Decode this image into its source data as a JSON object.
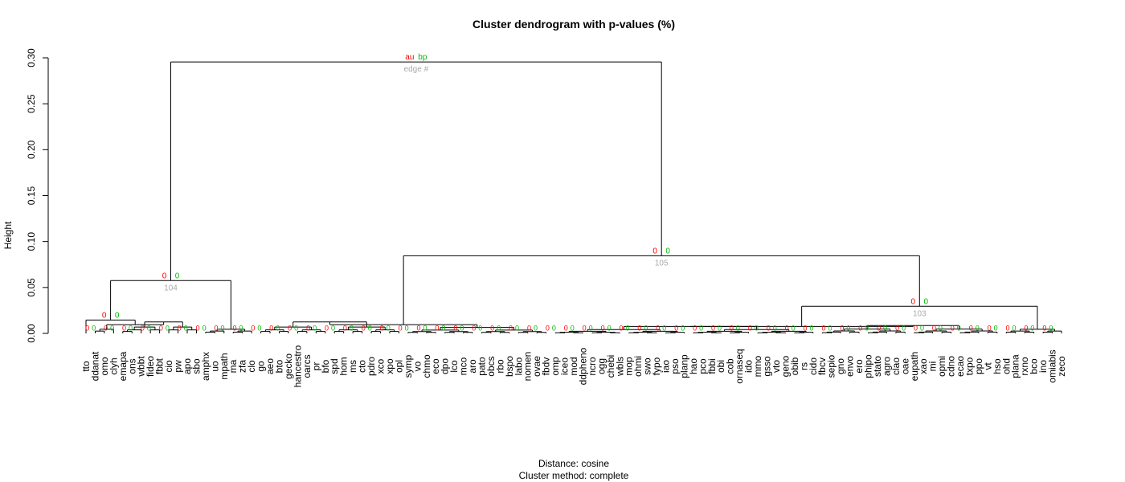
{
  "chart_data": {
    "type": "dendrogram",
    "title": "Cluster dendrogram with p-values (%)",
    "ylabel": "Height",
    "xlabel_line1": "Distance: cosine",
    "xlabel_line2": "Cluster method: complete",
    "ylim": [
      0,
      0.3
    ],
    "y_ticks": [
      "0.00",
      "0.05",
      "0.10",
      "0.15",
      "0.20",
      "0.25",
      "0.30"
    ],
    "legend": {
      "au": "au",
      "bp": "bp",
      "edge": "edge #"
    },
    "colors": {
      "au": "#ff0000",
      "bp": "#00bb00",
      "edge": "#aaaaaa",
      "line": "#000000"
    },
    "leaves": [
      "tto",
      "ddanat",
      "omo",
      "clyh",
      "emapa",
      "ons",
      "wbbt",
      "fideo",
      "fbbt",
      "cio",
      "pw",
      "apo",
      "sbo",
      "amphx",
      "uo",
      "mpath",
      "ma",
      "zfa",
      "clo",
      "go",
      "aeo",
      "bto",
      "gecko",
      "hancestro",
      "oarcs",
      "pr",
      "bfo",
      "spd",
      "hom",
      "ms",
      "cto",
      "pdro",
      "xco",
      "xpo",
      "opl",
      "symp",
      "vo",
      "chmo",
      "eco",
      "dpo",
      "lco",
      "mco",
      "aro",
      "pato",
      "obcs",
      "rbo",
      "bspo",
      "labo",
      "nomen",
      "ovae",
      "fbdv",
      "omp",
      "iceo",
      "mod",
      "ddpheno",
      "ncro",
      "ogg",
      "chebi",
      "wbls",
      "mop",
      "ohmi",
      "swo",
      "fypo",
      "iao",
      "pso",
      "planp",
      "hao",
      "pco",
      "fbbi",
      "obi",
      "cob",
      "ornaseq",
      "ido",
      "mmo",
      "gsso",
      "vto",
      "geno",
      "obib",
      "rs",
      "cido",
      "fbcv",
      "sepio",
      "gno",
      "envo",
      "ero",
      "phipo",
      "stato",
      "agro",
      "clao",
      "oae",
      "eupath",
      "xao",
      "mi",
      "opmi",
      "cdno",
      "ecao",
      "txpo",
      "ppo",
      "vt",
      "hso",
      "ohd",
      "plana",
      "rxno",
      "bco",
      "ino",
      "omiabis",
      "zeco"
    ],
    "merges": [
      {
        "height": 0.2955,
        "au": "au",
        "bp": "bp",
        "edge": "edge #"
      },
      {
        "height": 0.0845,
        "au": "0",
        "bp": "0",
        "edge": "105"
      },
      {
        "height": 0.0575,
        "au": "0",
        "bp": "0",
        "edge": "104"
      },
      {
        "height": 0.0295,
        "au": "0",
        "bp": "0",
        "edge": "103"
      },
      {
        "height": 0.0145,
        "au": "0",
        "bp": "0",
        "edge": ""
      },
      {
        "height": 0.0125,
        "au": "0",
        "bp": "0",
        "edge": ""
      },
      {
        "height": 0.0095,
        "au": "0",
        "bp": "0",
        "edge": ""
      },
      {
        "height": 0.0075,
        "au": "0",
        "bp": "0",
        "edge": ""
      }
    ]
  }
}
